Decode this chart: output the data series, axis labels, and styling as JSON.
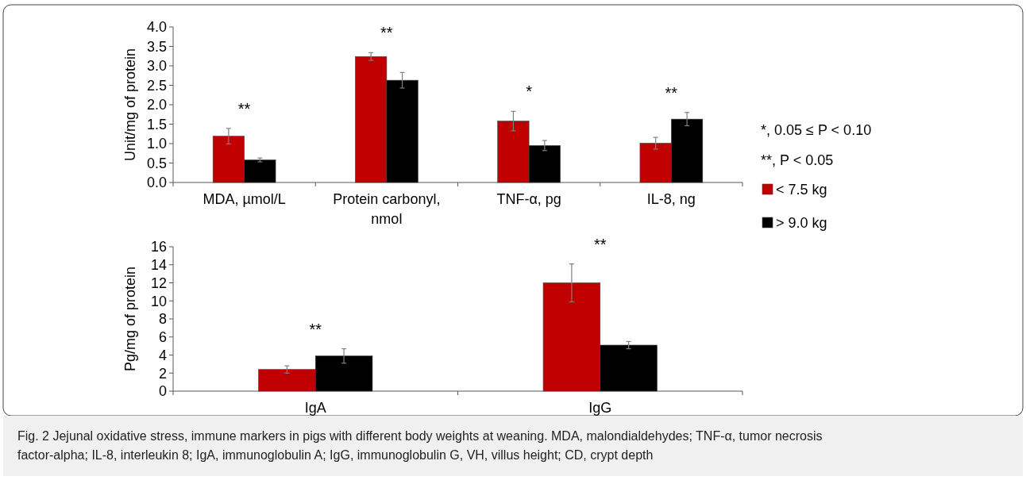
{
  "chart_data": [
    {
      "type": "bar",
      "ylabel": "Unit/mg of protein",
      "categories": [
        "MDA, µmol/L",
        "Protein carbonyl, nmol",
        "TNF-α, pg",
        "IL-8, ng"
      ],
      "series": [
        {
          "name": "< 7.5 kg",
          "color": "#c00000",
          "values": [
            1.19,
            3.24,
            1.58,
            1.01
          ],
          "errors": [
            0.2,
            0.1,
            0.25,
            0.15
          ]
        },
        {
          "name": "> 9.0 kg",
          "color": "#000000",
          "values": [
            0.58,
            2.63,
            0.95,
            1.63
          ],
          "errors": [
            0.05,
            0.2,
            0.13,
            0.17
          ]
        }
      ],
      "ylim": [
        0,
        4
      ],
      "yticks": [
        {
          "value": 0,
          "label": "0.0"
        },
        {
          "value": 0.5,
          "label": "0.5"
        },
        {
          "value": 1,
          "label": "1.0"
        },
        {
          "value": 1.5,
          "label": "1.5"
        },
        {
          "value": 2,
          "label": "2.0"
        },
        {
          "value": 2.5,
          "label": "2.5"
        },
        {
          "value": 3,
          "label": "3.0"
        },
        {
          "value": 3.5,
          "label": "3.5"
        },
        {
          "value": 4,
          "label": "4.0"
        }
      ],
      "grid": false,
      "legend": "right",
      "annotations": [
        "**",
        "**",
        "*",
        "**",
        "*, 0.05 ≤ P < 0.10",
        "**, P < 0.05"
      ]
    },
    {
      "type": "bar",
      "ylabel": "Pg/mg of protein",
      "categories": [
        "IgA",
        "IgG"
      ],
      "series": [
        {
          "color": "#c00000",
          "values": [
            2.4,
            12
          ],
          "errors": [
            0.4,
            2.1
          ]
        },
        {
          "color": "#000000",
          "values": [
            3.9,
            5.1
          ],
          "errors": [
            0.8,
            0.4
          ]
        }
      ],
      "ylim": [
        0,
        16
      ],
      "yticks": [
        0,
        2,
        4,
        6,
        8,
        10,
        12,
        14,
        16
      ],
      "grid": false,
      "legend": false,
      "annotations": [
        "**",
        "**",
        "Fig. 2 Jejunal oxidative stress, immune markers in pigs with different body weights at weaning. MDA, malondialdehydes; TNF-α, tumor necrosis factor-alpha; IL-8, interleukin 8; IgA, immunoglobulin A; IgG, immunoglobulin G, VH, villus height; CD, crypt depth"
      ]
    }
  ]
}
